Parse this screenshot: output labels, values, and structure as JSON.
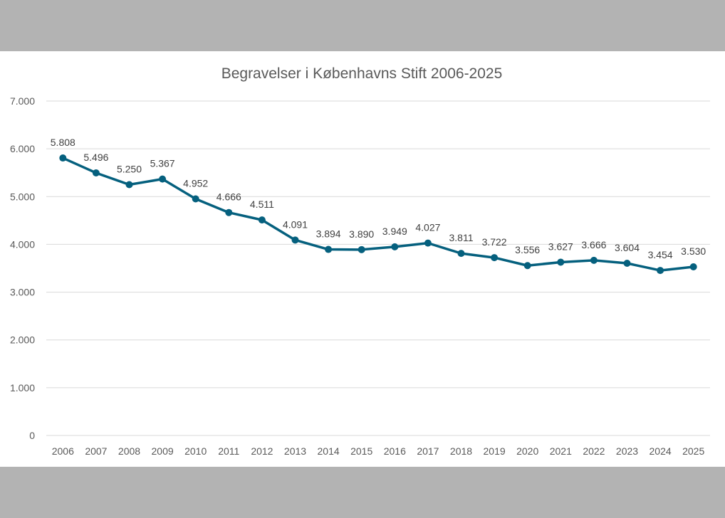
{
  "chart_data": {
    "type": "line",
    "title": "Begravelser i Københavns Stift 2006-2025",
    "xlabel": "",
    "ylabel": "",
    "ylim": [
      0,
      7000
    ],
    "yticks": [
      0,
      1000,
      2000,
      3000,
      4000,
      5000,
      6000,
      7000
    ],
    "ytick_labels": [
      "0",
      "1.000",
      "2.000",
      "3.000",
      "4.000",
      "5.000",
      "6.000",
      "7.000"
    ],
    "grid": true,
    "categories": [
      "2006",
      "2007",
      "2008",
      "2009",
      "2010",
      "2011",
      "2012",
      "2013",
      "2014",
      "2015",
      "2016",
      "2017",
      "2018",
      "2019",
      "2020",
      "2021",
      "2022",
      "2023",
      "2024",
      "2025"
    ],
    "series": [
      {
        "name": "Begravelser",
        "values": [
          5808,
          5496,
          5250,
          5367,
          4952,
          4666,
          4511,
          4091,
          3894,
          3890,
          3949,
          4027,
          3811,
          3722,
          3556,
          3627,
          3666,
          3604,
          3454,
          3530
        ],
        "labels": [
          "5.808",
          "5.496",
          "5.250",
          "5.367",
          "4.952",
          "4.666",
          "4.511",
          "4.091",
          "3.894",
          "3.890",
          "3.949",
          "4.027",
          "3.811",
          "3.722",
          "3.556",
          "3.627",
          "3.666",
          "3.604",
          "3.454",
          "3.530"
        ]
      }
    ],
    "colors": {
      "line": "#05607e",
      "grid": "#d9d9d9",
      "text": "#595959",
      "title": "#595959"
    }
  }
}
